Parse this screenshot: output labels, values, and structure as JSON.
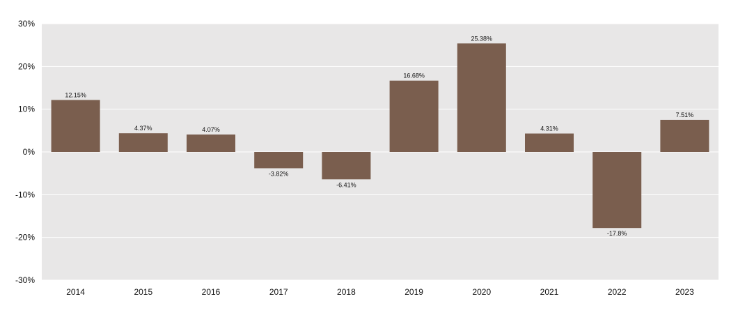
{
  "chart_data": {
    "type": "bar",
    "categories": [
      "2014",
      "2015",
      "2016",
      "2017",
      "2018",
      "2019",
      "2020",
      "2021",
      "2022",
      "2023"
    ],
    "values": [
      12.15,
      4.37,
      4.07,
      -3.82,
      -6.41,
      16.68,
      25.38,
      4.31,
      -17.8,
      7.51
    ],
    "data_labels": [
      "12.15%",
      "4.37%",
      "4.07%",
      "-3.82%",
      "-6.41%",
      "16.68%",
      "25.38%",
      "4.31%",
      "-17.8%",
      "7.51%"
    ],
    "y_ticks": [
      30,
      20,
      10,
      0,
      -10,
      -20,
      -30
    ],
    "y_tick_labels": [
      "30%",
      "20%",
      "10%",
      "0%",
      "-10%",
      "-20%",
      "-30%"
    ],
    "ylim": [
      -30,
      30
    ],
    "grid": true,
    "legend": "none",
    "colors": {
      "bar": "#7a5e4e",
      "plot_background": "#e8e7e7",
      "gridline": "#ffffff"
    }
  }
}
